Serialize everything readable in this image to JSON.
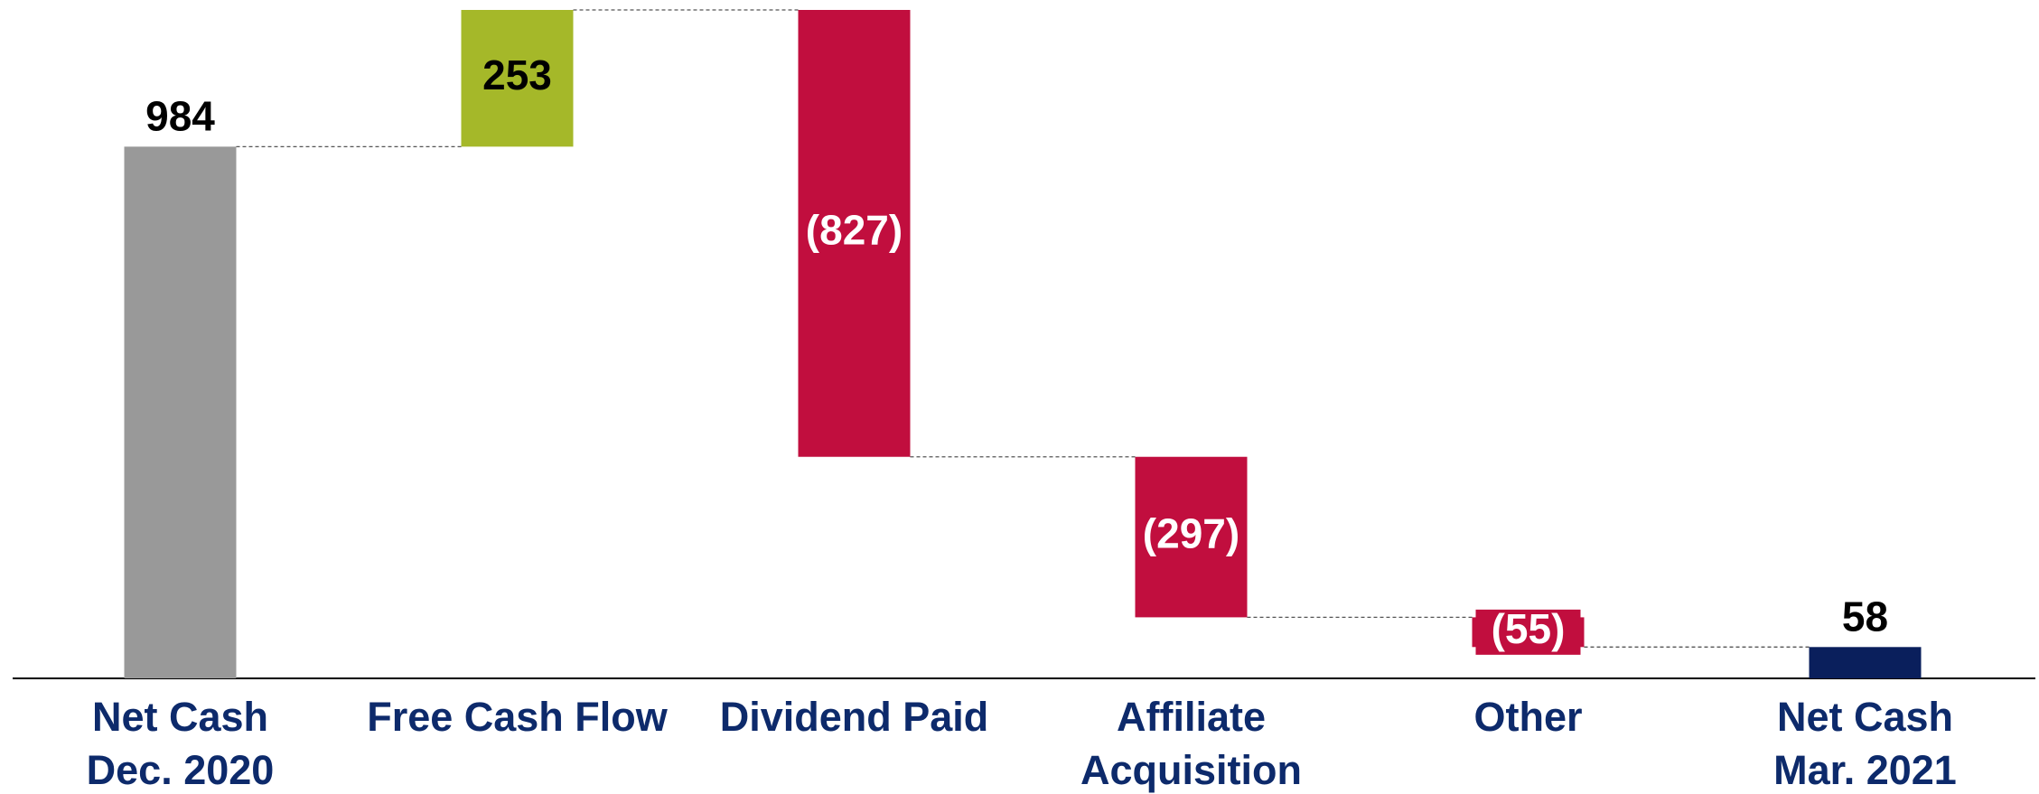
{
  "chart_data": {
    "type": "waterfall",
    "categories": [
      [
        "Net Cash",
        "Dec. 2020"
      ],
      [
        "Free Cash Flow"
      ],
      [
        "Dividend Paid"
      ],
      [
        "Affiliate",
        "Acquisition"
      ],
      [
        "Other"
      ],
      [
        "Net Cash",
        "Mar. 2021"
      ]
    ],
    "values": [
      984,
      253,
      -827,
      -297,
      -55,
      58
    ],
    "value_labels": [
      "984",
      "253",
      "(827)",
      "(297)",
      "(55)",
      "58"
    ],
    "kinds": [
      "total",
      "delta",
      "delta",
      "delta",
      "delta",
      "total"
    ],
    "colors": [
      "#999999",
      "#a5b829",
      "#c10e3e",
      "#c10e3e",
      "#c10e3e",
      "#0a1f5c"
    ],
    "label_colors": [
      "#000000",
      "#000000",
      "#ffffff",
      "#ffffff",
      "#ffffff",
      "#000000"
    ]
  }
}
